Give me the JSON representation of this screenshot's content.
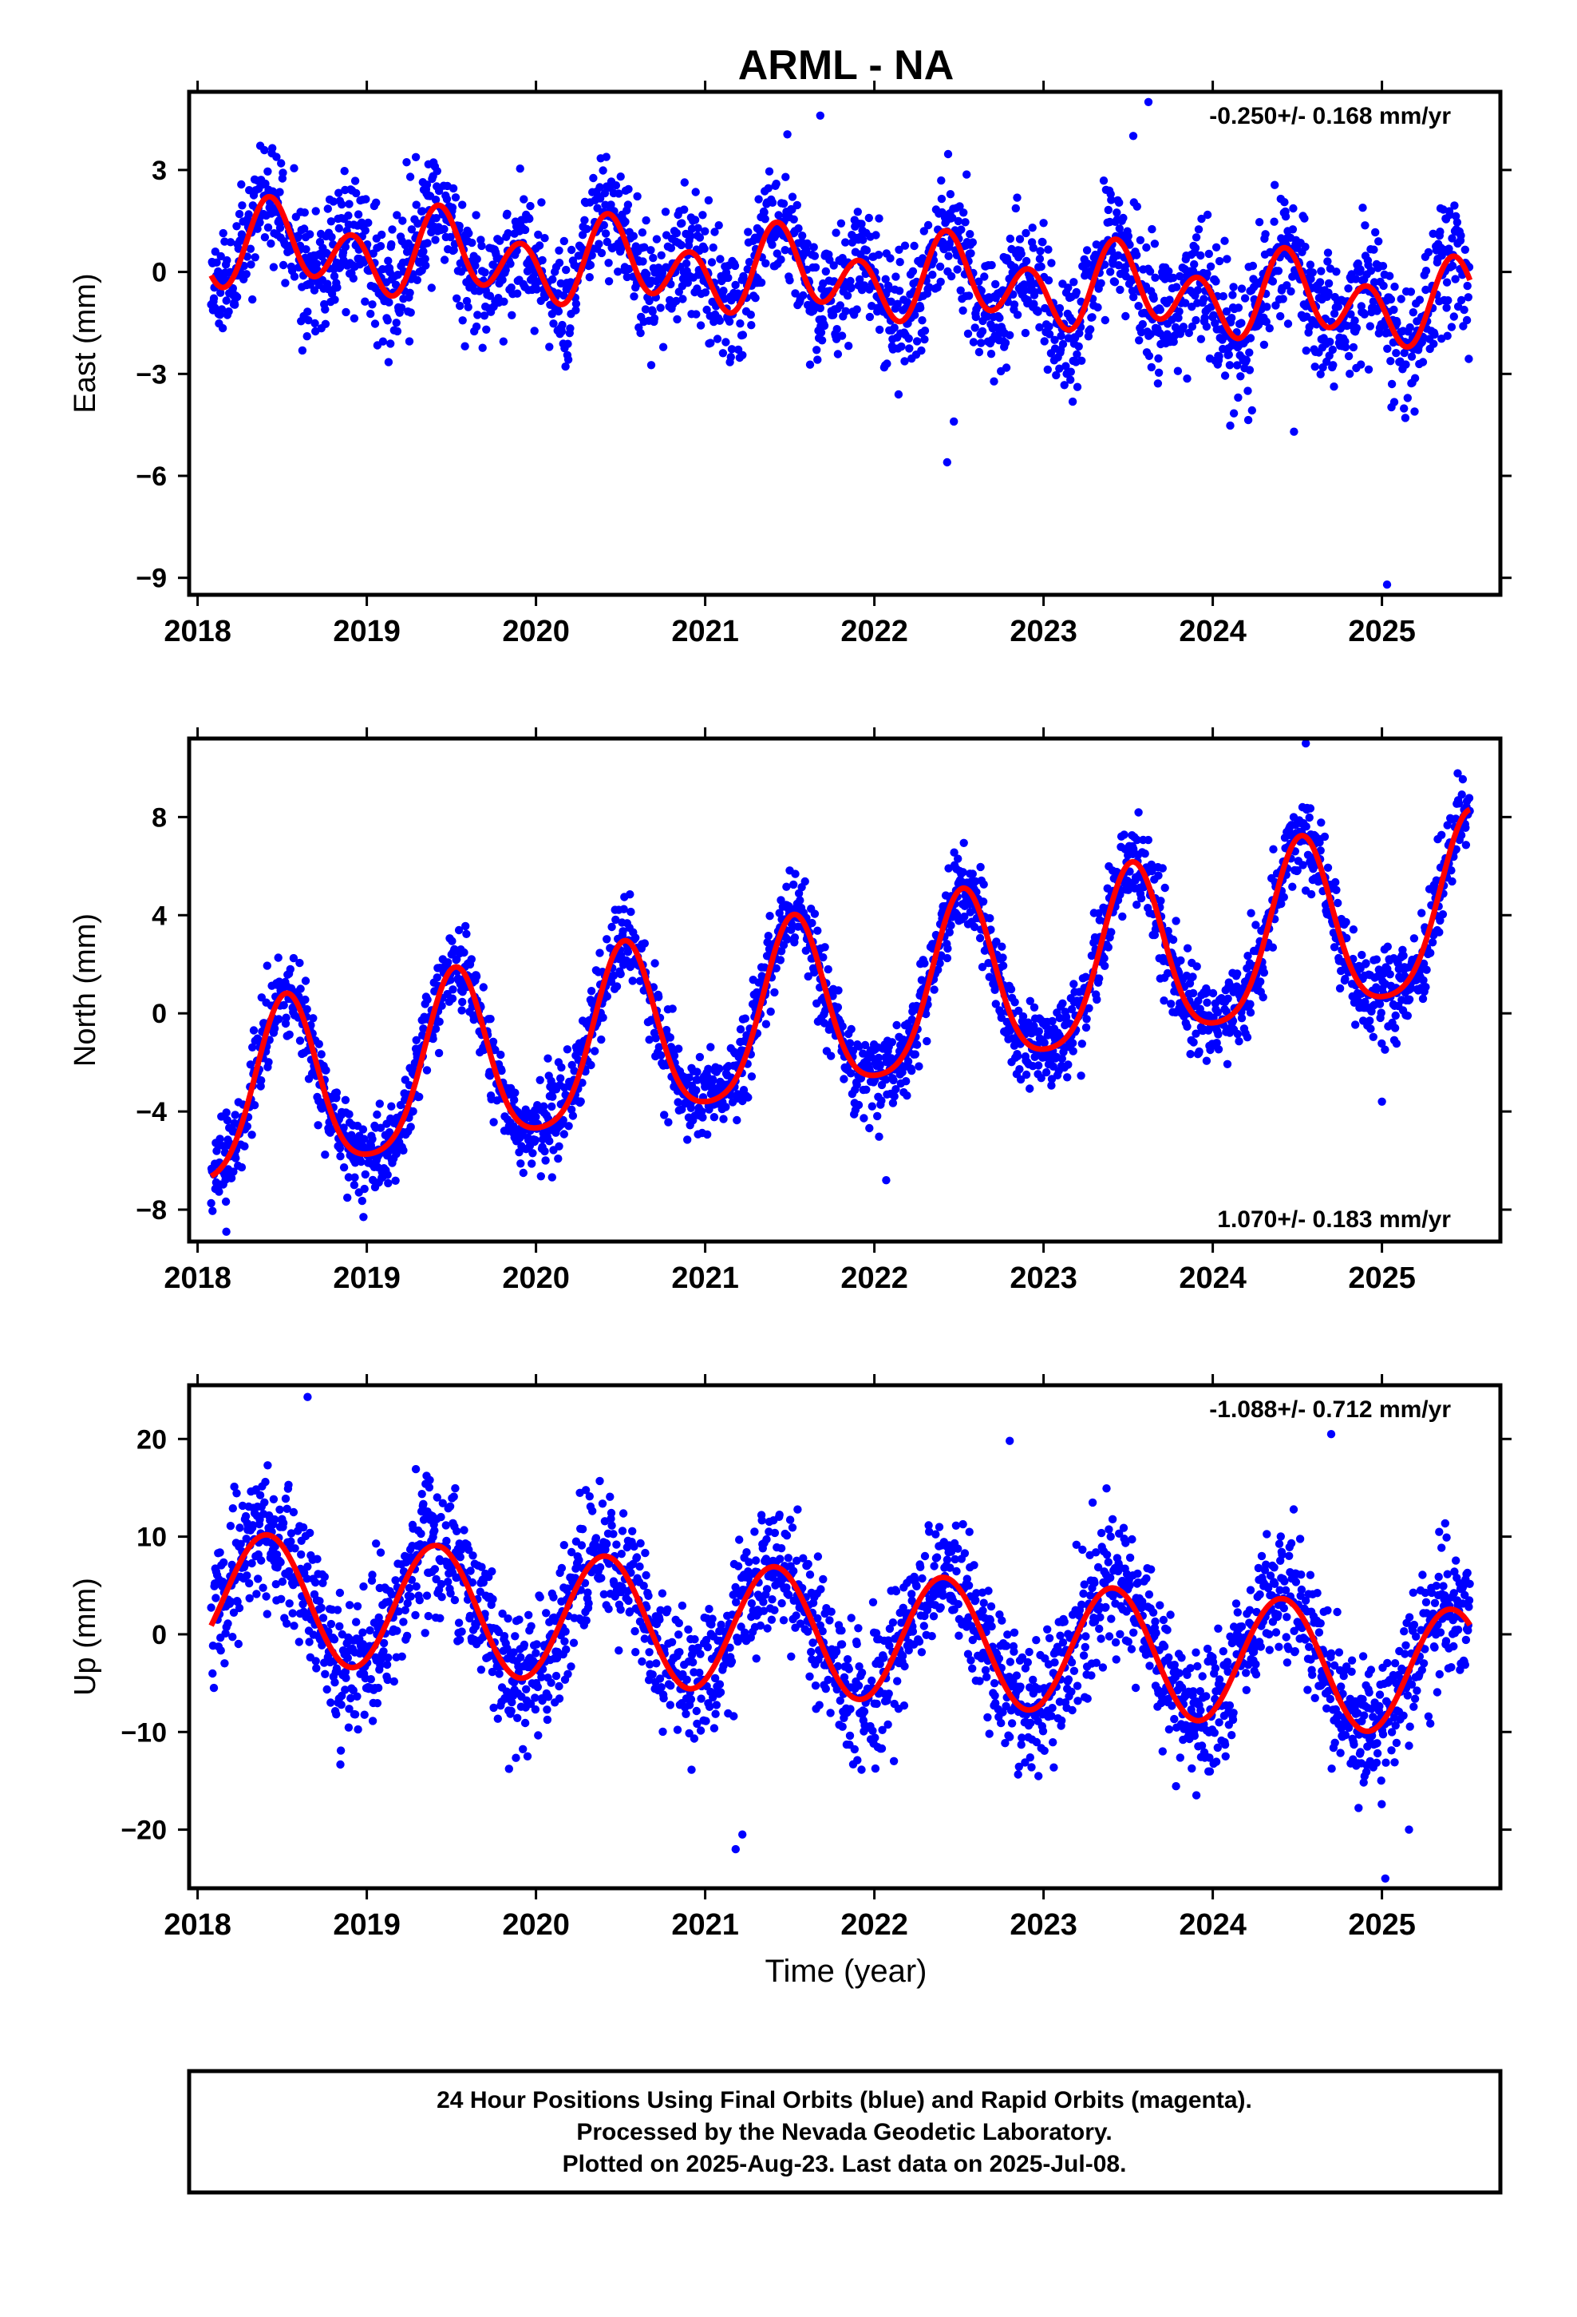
{
  "colors": {
    "points": "#0000ff",
    "fit": "#ff0000",
    "frame": "#000000"
  },
  "title": "ARML - NA",
  "xlabel": "Time (year)",
  "footer_lines": [
    "24 Hour Positions Using Final Orbits (blue) and Rapid Orbits (magenta).",
    "Processed by the Nevada Geodetic Laboratory.",
    "Plotted on 2025-Aug-23. Last data on 2025-Jul-08."
  ],
  "chart_data": [
    {
      "type": "scatter",
      "ylabel": "East (mm)",
      "rate": "-0.250+/- 0.168 mm/yr",
      "xlim": [
        2017.95,
        2025.7
      ],
      "ylim": [
        -9.5,
        5.3
      ],
      "x_ticks": [
        2018,
        2019,
        2020,
        2021,
        2022,
        2023,
        2024,
        2025
      ],
      "x_tick_labels": [
        "2018",
        "2019",
        "2020",
        "2021",
        "2022",
        "2023",
        "2024",
        "2025"
      ],
      "y_ticks": [
        3,
        0,
        -3,
        -6,
        -9
      ],
      "y_tick_labels": [
        "3",
        "0",
        "−3",
        "−6",
        "−9"
      ],
      "data_range": [
        2018.08,
        2025.52
      ],
      "model": {
        "t0": 2018.1,
        "offset": 0.8,
        "trend": -0.25,
        "annual_sin": 0.05,
        "annual_cos": -0.55,
        "semi_sin": -0.85,
        "semi_cos": 0.5,
        "noise_sd": 0.9,
        "seed": 11
      },
      "outliers": [
        [
          2022.43,
          -5.6
        ],
        [
          2022.47,
          -4.4
        ],
        [
          2025.03,
          -9.2
        ],
        [
          2023.62,
          5.0
        ],
        [
          2023.53,
          4.0
        ],
        [
          2021.68,
          4.6
        ],
        [
          2024.48,
          -4.7
        ]
      ]
    },
    {
      "type": "scatter",
      "ylabel": "North (mm)",
      "rate": "1.070+/- 0.183 mm/yr",
      "xlim": [
        2017.95,
        2025.7
      ],
      "ylim": [
        -9.3,
        11.2
      ],
      "x_ticks": [
        2018,
        2019,
        2020,
        2021,
        2022,
        2023,
        2024,
        2025
      ],
      "x_tick_labels": [
        "2018",
        "2019",
        "2020",
        "2021",
        "2022",
        "2023",
        "2024",
        "2025"
      ],
      "y_ticks": [
        8,
        4,
        0,
        -4,
        -8
      ],
      "y_tick_labels": [
        "8",
        "4",
        "0",
        "−4",
        "−8"
      ],
      "data_range": [
        2018.08,
        2025.52
      ],
      "model": {
        "t0": 2018.1,
        "offset": -3.8,
        "trend": 1.07,
        "annual_sin": -0.5,
        "annual_cos": -3.5,
        "semi_sin": 0.2,
        "semi_cos": 0.6,
        "noise_sd": 0.85,
        "seed": 23
      },
      "outliers": [
        [
          2018.17,
          -8.9
        ],
        [
          2022.07,
          -6.8
        ],
        [
          2025.0,
          -3.6
        ],
        [
          2024.55,
          11.0
        ],
        [
          2018.98,
          -8.3
        ]
      ]
    },
    {
      "type": "scatter",
      "ylabel": "Up (mm)",
      "rate": "-1.088+/- 0.712 mm/yr",
      "xlim": [
        2017.95,
        2025.7
      ],
      "ylim": [
        -26,
        25.5
      ],
      "x_ticks": [
        2018,
        2019,
        2020,
        2021,
        2022,
        2023,
        2024,
        2025
      ],
      "x_tick_labels": [
        "2018",
        "2019",
        "2020",
        "2021",
        "2022",
        "2023",
        "2024",
        "2025"
      ],
      "y_ticks": [
        20,
        10,
        0,
        -10,
        -20
      ],
      "y_tick_labels": [
        "20",
        "10",
        "0",
        "−10",
        "−20"
      ],
      "data_range": [
        2018.08,
        2025.52
      ],
      "model": {
        "t0": 2018.1,
        "offset": 4.0,
        "trend": -1.088,
        "annual_sin": 3.5,
        "annual_cos": -5.5,
        "semi_sin": 0.0,
        "semi_cos": 0.0,
        "noise_sd": 3.4,
        "seed": 37
      },
      "outliers": [
        [
          2018.65,
          24.3
        ],
        [
          2022.8,
          19.8
        ],
        [
          2024.7,
          20.5
        ],
        [
          2021.18,
          -22.0
        ],
        [
          2025.02,
          -25.0
        ],
        [
          2025.16,
          -20.0
        ],
        [
          2021.22,
          -20.5
        ]
      ]
    }
  ]
}
